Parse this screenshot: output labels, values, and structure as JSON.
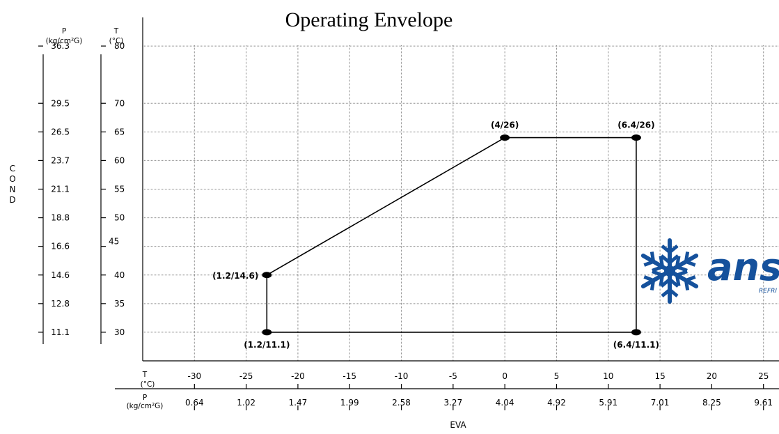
{
  "chart_data": {
    "type": "line",
    "title": "Operating Envelope",
    "xlabel": "EVA",
    "ylabel": "COND",
    "x_axis": {
      "t_header_top": "T",
      "t_header_bottom": "(°C)",
      "p_header_top": "P",
      "p_header_bottom": "(kg/cm²G)",
      "t_ticks": [
        "-30",
        "-25",
        "-20",
        "-15",
        "-10",
        "-5",
        "0",
        "5",
        "10",
        "15",
        "20",
        "25"
      ],
      "p_ticks": [
        "0.64",
        "1.02",
        "1.47",
        "1.99",
        "2.58",
        "3.27",
        "4.04",
        "4.92",
        "5.91",
        "7.01",
        "8.25",
        "9.61"
      ],
      "xlim": [
        -35,
        26.5
      ]
    },
    "y_axis": {
      "p_header_top": "P",
      "p_header_bottom": "(kg/cm²G)",
      "t_header_top": "T",
      "t_header_bottom": "(°C)",
      "t_ticks": [
        "80",
        "70",
        "65",
        "60",
        "55",
        "50",
        "45",
        "40",
        "35",
        "30"
      ],
      "p_ticks": [
        "36.3",
        "29.5",
        "26.5",
        "23.7",
        "21.1",
        "18.8",
        "16.6",
        "14.6",
        "12.8",
        "11.1"
      ],
      "ylim": [
        25,
        85
      ]
    },
    "series": [
      {
        "points": [
          {
            "label": "(1.2/11.1)",
            "x": -23,
            "y": 30
          },
          {
            "label": "(1.2/14.6)",
            "x": -23,
            "y": 40
          },
          {
            "label": "(4/26)",
            "x": 0,
            "y": 64
          },
          {
            "label": "(6.4/26)",
            "x": 12.7,
            "y": 64
          },
          {
            "label": "(6.4/11.1)",
            "x": 12.7,
            "y": 30
          }
        ]
      }
    ],
    "grid": true
  },
  "logo": {
    "text": "ans",
    "subtext": "REFRI",
    "color": "#15519c"
  }
}
